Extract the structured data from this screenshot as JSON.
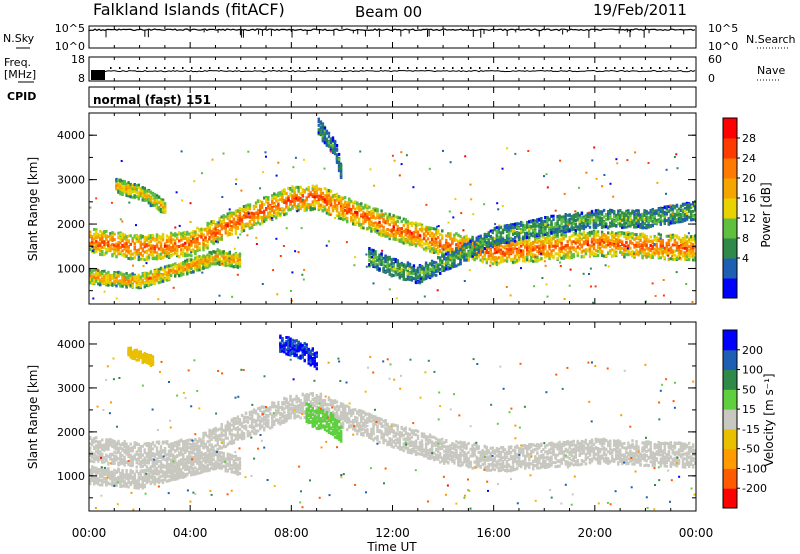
{
  "header": {
    "title": "Falkland Islands (fitACF)",
    "beam": "Beam 00",
    "date": "19/Feb/2011"
  },
  "strip_panels": {
    "nsky": {
      "label": "N.Sky",
      "ticks": [
        "10^5",
        "10^0"
      ]
    },
    "nsearch": {
      "label": "N.Search",
      "ticks": [
        "10^5",
        "10^0"
      ]
    },
    "freq": {
      "label_top": "Freq.",
      "label_bottom": "[MHz]",
      "ticks": [
        "18",
        "8"
      ]
    },
    "nave": {
      "label": "Nave",
      "ticks": [
        "60",
        "0"
      ]
    },
    "cpid": {
      "label": "CPID",
      "mode": "normal (fast) 151"
    }
  },
  "x_axis": {
    "label": "Time UT",
    "ticks": [
      "00:00",
      "04:00",
      "08:00",
      "12:00",
      "16:00",
      "20:00",
      "00:00"
    ]
  },
  "y_axis": {
    "label": "Slant Range [km]",
    "ticks": [
      "1000",
      "2000",
      "3000",
      "4000"
    ]
  },
  "chart_data": [
    {
      "type": "heatmap",
      "name": "power",
      "xlabel": "Time UT",
      "ylabel": "Slant Range [km]",
      "xlim": [
        0,
        24
      ],
      "ylim": [
        200,
        4500
      ],
      "colorbar": {
        "label": "Power [dB]",
        "ticks": [
          "28",
          "24",
          "20",
          "16",
          "12",
          "8",
          "4"
        ],
        "range": [
          0,
          32
        ],
        "colors": [
          "#0000ff",
          "#1e5fb4",
          "#2f8a4a",
          "#5fbf3f",
          "#e8d200",
          "#f4a500",
          "#ff7a00",
          "#ff3c00",
          "#ff0000"
        ]
      },
      "bands": [
        {
          "points": [
            [
              0,
              1600
            ],
            [
              2,
              1450
            ],
            [
              4,
              1550
            ],
            [
              6,
              2100
            ],
            [
              8,
              2550
            ],
            [
              9,
              2600
            ],
            [
              10,
              2350
            ],
            [
              12,
              1900
            ],
            [
              14,
              1550
            ],
            [
              16,
              1350
            ],
            [
              18,
              1450
            ],
            [
              20,
              1550
            ],
            [
              22,
              1500
            ],
            [
              24,
              1450
            ]
          ],
          "width_km": 350,
          "db": 26
        },
        {
          "points": [
            [
              0,
              800
            ],
            [
              2,
              700
            ],
            [
              4,
              1050
            ],
            [
              5,
              1250
            ],
            [
              6,
              1150
            ]
          ],
          "width_km": 200,
          "db": 22
        },
        {
          "points": [
            [
              11,
              1250
            ],
            [
              12,
              1000
            ],
            [
              13,
              850
            ],
            [
              14,
              1100
            ],
            [
              15,
              1400
            ],
            [
              16,
              1700
            ],
            [
              18,
              1950
            ],
            [
              20,
              2100
            ],
            [
              22,
              2100
            ],
            [
              24,
              2300
            ]
          ],
          "width_km": 250,
          "db": 12
        },
        {
          "points": [
            [
              1,
              2850
            ],
            [
              2,
              2700
            ],
            [
              3,
              2350
            ]
          ],
          "width_km": 200,
          "db": 20
        },
        {
          "points": [
            [
              9,
              4200
            ],
            [
              9.7,
              3700
            ],
            [
              10,
              3000
            ]
          ],
          "width_km": 250,
          "db": 10
        }
      ]
    },
    {
      "type": "heatmap",
      "name": "velocity",
      "xlabel": "Time UT",
      "ylabel": "Slant Range [km]",
      "xlim": [
        0,
        24
      ],
      "ylim": [
        200,
        4500
      ],
      "colorbar": {
        "label": "Velocity [m s⁻¹]",
        "ticks": [
          "200",
          "100",
          "50",
          "15",
          "-15",
          "-50",
          "-100",
          "-200"
        ],
        "range": [
          -250,
          250
        ],
        "colors": [
          "#ff0000",
          "#ff5a00",
          "#ff9a00",
          "#e8c000",
          "#c8c8c0",
          "#5fcf3f",
          "#2f8a4a",
          "#1e5fb4",
          "#0000ff"
        ]
      },
      "bands": [
        {
          "points": [
            [
              0,
              1600
            ],
            [
              2,
              1450
            ],
            [
              4,
              1550
            ],
            [
              6,
              2100
            ],
            [
              8,
              2550
            ],
            [
              9,
              2600
            ],
            [
              10,
              2350
            ],
            [
              12,
              1900
            ],
            [
              14,
              1550
            ],
            [
              16,
              1350
            ],
            [
              18,
              1450
            ],
            [
              20,
              1550
            ],
            [
              22,
              1500
            ],
            [
              24,
              1450
            ]
          ],
          "width_km": 350,
          "vel": 0
        },
        {
          "points": [
            [
              0,
              1000
            ],
            [
              2,
              900
            ],
            [
              4,
              1200
            ],
            [
              5,
              1350
            ],
            [
              6,
              1200
            ]
          ],
          "width_km": 250,
          "vel": 0
        },
        {
          "points": [
            [
              8.5,
              2400
            ],
            [
              9.5,
              2200
            ],
            [
              10,
              1900
            ]
          ],
          "width_km": 300,
          "vel": 60
        },
        {
          "points": [
            [
              7.5,
              4000
            ],
            [
              8.5,
              3800
            ],
            [
              9,
              3600
            ]
          ],
          "width_km": 250,
          "vel": 200
        },
        {
          "points": [
            [
              1.5,
              3800
            ],
            [
              2.5,
              3600
            ]
          ],
          "width_km": 150,
          "vel": -60
        }
      ]
    }
  ]
}
